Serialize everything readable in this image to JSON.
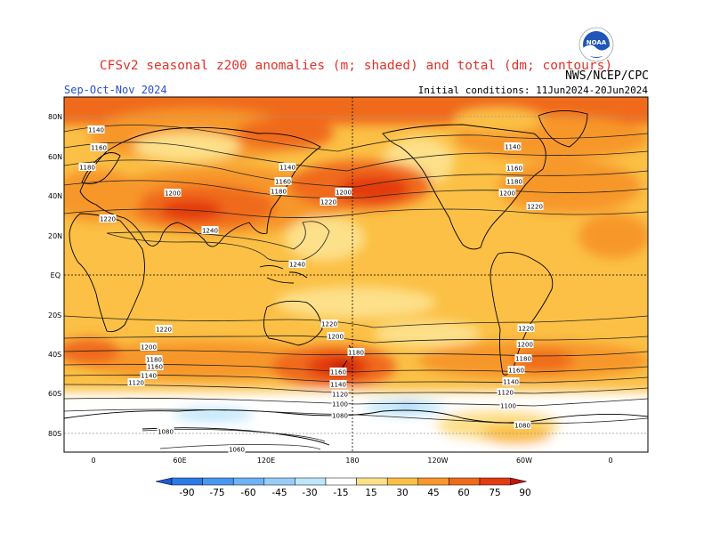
{
  "header": {
    "title": "CFSv2 seasonal z200 anomalies (m; shaded) and total (dm; contours)",
    "organization": "NWS/NCEP/CPC",
    "season": "Sep-Oct-Nov 2024",
    "initial_conditions": "Initial conditions: 11Jun2024-20Jun2024",
    "logo_text": "NOAA"
  },
  "axes": {
    "latitude_labels": [
      "80N",
      "60N",
      "40N",
      "20N",
      "EQ",
      "20S",
      "40S",
      "60S",
      "80S"
    ],
    "longitude_labels": [
      "0",
      "60E",
      "120E",
      "180",
      "120W",
      "60W",
      "0"
    ]
  },
  "colorbar": {
    "values": [
      "-90",
      "-75",
      "-60",
      "-45",
      "-30",
      "-15",
      "15",
      "30",
      "45",
      "60",
      "75",
      "90"
    ],
    "colors": [
      "#1a5bd1",
      "#2a7be8",
      "#4a97f0",
      "#6fb2f5",
      "#98cdf8",
      "#bde6fb",
      "#ffffff",
      "#fde08a",
      "#fbc045",
      "#f7972c",
      "#f06a1c",
      "#e33a10",
      "#c0150d"
    ]
  },
  "contour_labels": [
    "1140",
    "1160",
    "1180",
    "1200",
    "1220",
    "1240",
    "1140",
    "1160",
    "1180",
    "1200",
    "1220",
    "1140",
    "1160",
    "1180",
    "1200",
    "1220",
    "1240",
    "1220",
    "1200",
    "1180",
    "1160",
    "1140",
    "1120",
    "1220",
    "1200",
    "1180",
    "1160",
    "1140",
    "1120",
    "1100",
    "1080",
    "1220",
    "1200",
    "1180",
    "1160",
    "1140",
    "1120",
    "1100",
    "1080",
    "1080",
    "1060"
  ],
  "map": {
    "projection": "cylindrical",
    "central_longitude": "180",
    "gridlines": "dotted"
  }
}
